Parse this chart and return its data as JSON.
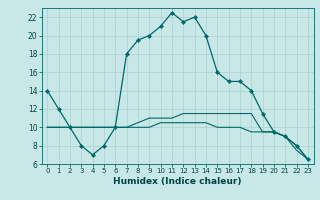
{
  "xlabel": "Humidex (Indice chaleur)",
  "ylabel": "",
  "background_color": "#c8e8e8",
  "grid_color": "#b0d4d4",
  "line_color": "#006868",
  "xlim": [
    -0.5,
    23.5
  ],
  "ylim": [
    6,
    23
  ],
  "xticks": [
    0,
    1,
    2,
    3,
    4,
    5,
    6,
    7,
    8,
    9,
    10,
    11,
    12,
    13,
    14,
    15,
    16,
    17,
    18,
    19,
    20,
    21,
    22,
    23
  ],
  "yticks": [
    6,
    8,
    10,
    12,
    14,
    16,
    18,
    20,
    22
  ],
  "line1_x": [
    0,
    1,
    2,
    3,
    4,
    5,
    6,
    7,
    8,
    9,
    10,
    11,
    12,
    13,
    14,
    15,
    16,
    17,
    18,
    19,
    20,
    21,
    22,
    23
  ],
  "line1_y": [
    14,
    12,
    10,
    8,
    7,
    8,
    10,
    18,
    19.5,
    20,
    21,
    22.5,
    21.5,
    22,
    20,
    16,
    15,
    15,
    14,
    11.5,
    9.5,
    9,
    8,
    6.5
  ],
  "line2_x": [
    0,
    1,
    2,
    3,
    4,
    5,
    6,
    7,
    8,
    9,
    10,
    11,
    12,
    13,
    14,
    15,
    16,
    17,
    18,
    19,
    20,
    21,
    22,
    23
  ],
  "line2_y": [
    10,
    10,
    10,
    10,
    10,
    10,
    10,
    10,
    10.5,
    11,
    11,
    11,
    11.5,
    11.5,
    11.5,
    11.5,
    11.5,
    11.5,
    11.5,
    9.5,
    9.5,
    9,
    8,
    6.5
  ],
  "line3_x": [
    0,
    1,
    2,
    3,
    4,
    5,
    6,
    7,
    8,
    9,
    10,
    11,
    12,
    13,
    14,
    15,
    16,
    17,
    18,
    19,
    20,
    21,
    22,
    23
  ],
  "line3_y": [
    10,
    10,
    10,
    10,
    10,
    10,
    10,
    10,
    10,
    10,
    10.5,
    10.5,
    10.5,
    10.5,
    10.5,
    10,
    10,
    10,
    9.5,
    9.5,
    9.5,
    9,
    7.5,
    6.5
  ]
}
